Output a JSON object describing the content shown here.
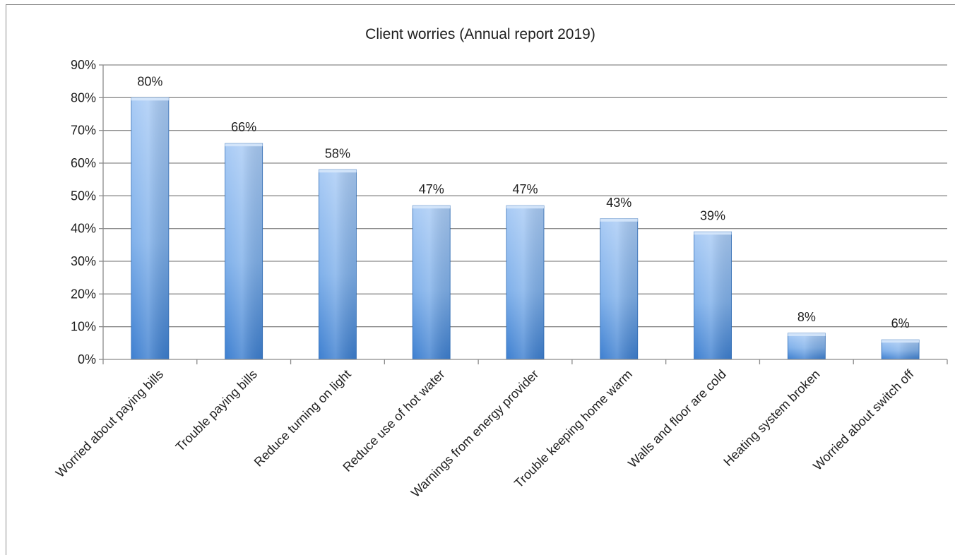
{
  "chart_data": {
    "type": "bar",
    "title": "Client worries (Annual report 2019)",
    "categories": [
      "Worried about paying bills",
      "Trouble paying bills",
      "Reduce turning on light",
      "Reduce use of hot water",
      "Warnings from energy provider",
      "Trouble keeping home warm",
      "Walls and floor are cold",
      "Heating system broken",
      "Worried about switch off"
    ],
    "values": [
      80,
      66,
      58,
      47,
      47,
      43,
      39,
      8,
      6
    ],
    "data_labels": [
      "80%",
      "66%",
      "58%",
      "47%",
      "47%",
      "43%",
      "39%",
      "8%",
      "6%"
    ],
    "y_ticks": [
      "0%",
      "10%",
      "20%",
      "30%",
      "40%",
      "50%",
      "60%",
      "70%",
      "80%",
      "90%"
    ],
    "ylim": [
      0,
      90
    ],
    "xlabel": "",
    "ylabel": "",
    "grid": true,
    "legend": "none",
    "colors": {
      "bar_light": "#a9cbf5",
      "bar_mid": "#7fb0ea",
      "bar_dark": "#3d7fd0",
      "bar_edge": "#2f6db8",
      "grid": "#8a8a8a",
      "axis": "#8a8a8a"
    }
  }
}
